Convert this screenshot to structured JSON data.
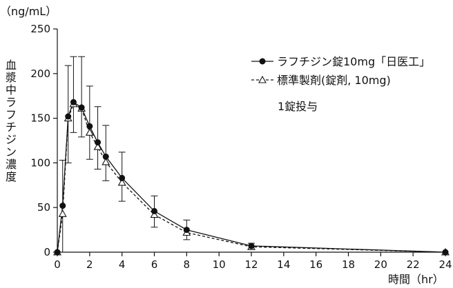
{
  "chart_data": {
    "type": "line",
    "y_unit_label": "（ng/mL）",
    "ylabel": "血漿中ラフチジン濃度",
    "xlabel": "時間（hr）",
    "xlim": [
      0,
      24
    ],
    "ylim": [
      0,
      250
    ],
    "x_ticks": [
      0,
      2,
      4,
      6,
      8,
      10,
      12,
      14,
      16,
      18,
      20,
      22,
      24
    ],
    "y_ticks": [
      0,
      50,
      100,
      150,
      200,
      250
    ],
    "grid": false,
    "legend_position": "top-right",
    "annotation": "1錠投与",
    "x": [
      0,
      0.33,
      0.67,
      1,
      1.5,
      2,
      2.5,
      3,
      4,
      6,
      8,
      12,
      24
    ],
    "series": [
      {
        "name": "ラフチジン錠10mg「日医工」",
        "legend_prefix": "—●—",
        "marker": "filled-circle",
        "line_style": "solid",
        "values": [
          0,
          52,
          152,
          168,
          162,
          141,
          123,
          107,
          83,
          46,
          25,
          7,
          0
        ],
        "error_upper": [
          0,
          103,
          209,
          219,
          219,
          186,
          163,
          142,
          112,
          63,
          36,
          10,
          0
        ]
      },
      {
        "name": "標準製剤(錠剤, 10mg)",
        "legend_prefix": "-△-",
        "marker": "open-triangle",
        "line_style": "dashed",
        "values": [
          0,
          43,
          150,
          166,
          161,
          134,
          118,
          101,
          78,
          42,
          22,
          6,
          0
        ],
        "error_lower": [
          0,
          0,
          100,
          134,
          129,
          104,
          93,
          80,
          57,
          28,
          14,
          3,
          0
        ]
      }
    ]
  }
}
